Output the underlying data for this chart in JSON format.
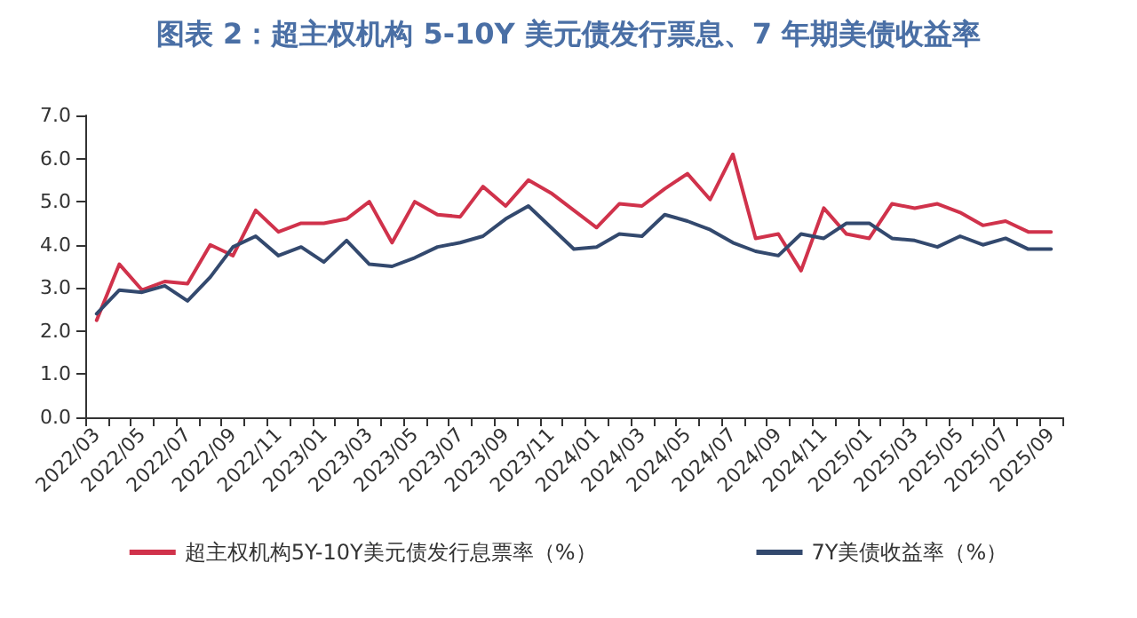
{
  "chart_data": {
    "type": "line",
    "title": "图表 2：超主权机构 5-10Y 美元债发行票息、7 年期美债收益率",
    "categories": [
      "2022/03",
      null,
      "2022/05",
      null,
      "2022/07",
      null,
      "2022/09",
      null,
      "2022/11",
      null,
      "2023/01",
      null,
      "2023/03",
      null,
      "2023/05",
      null,
      "2023/07",
      null,
      "2023/09",
      null,
      "2023/11",
      null,
      "2024/01",
      null,
      "2024/03",
      null,
      "2024/05",
      null,
      "2024/07",
      null,
      "2024/09",
      null,
      "2024/11",
      null,
      "2025/01",
      null,
      "2025/03",
      null,
      "2025/05",
      null,
      "2025/07",
      null,
      "2025/09"
    ],
    "series": [
      {
        "name": "超主权机构5Y-10Y美元债发行息票率（%）",
        "color": "#d0324b",
        "values": [
          2.25,
          3.55,
          2.95,
          3.15,
          3.1,
          4.0,
          3.75,
          4.8,
          4.3,
          4.5,
          4.5,
          4.6,
          5.0,
          4.05,
          5.0,
          4.7,
          4.65,
          5.35,
          4.9,
          5.5,
          5.2,
          4.8,
          4.4,
          4.95,
          4.9,
          5.3,
          5.65,
          5.05,
          6.1,
          4.15,
          4.25,
          3.4,
          4.85,
          4.25,
          4.15,
          4.95,
          4.85,
          4.95,
          4.75,
          4.45,
          4.55,
          4.3,
          4.3
        ]
      },
      {
        "name": "7Y美债收益率（%）",
        "color": "#33496e",
        "values": [
          2.4,
          2.95,
          2.9,
          3.05,
          2.7,
          3.25,
          3.95,
          4.2,
          3.75,
          3.95,
          3.6,
          4.1,
          3.55,
          3.5,
          3.7,
          3.95,
          4.05,
          4.2,
          4.6,
          4.9,
          4.4,
          3.9,
          3.95,
          4.25,
          4.2,
          4.7,
          4.55,
          4.35,
          4.05,
          3.85,
          3.75,
          4.25,
          4.15,
          4.5,
          4.5,
          4.15,
          4.1,
          3.95,
          4.2,
          4.0,
          4.15,
          3.9,
          3.9
        ]
      }
    ],
    "ylim": [
      0,
      7
    ],
    "yticks": [
      {
        "value": 0,
        "label": "0.0"
      },
      {
        "value": 1,
        "label": "1.0"
      },
      {
        "value": 2,
        "label": "2.0"
      },
      {
        "value": 3,
        "label": "3.0"
      },
      {
        "value": 4,
        "label": "4.0"
      },
      {
        "value": 5,
        "label": "5.0"
      },
      {
        "value": 6,
        "label": "6.0"
      },
      {
        "value": 7,
        "label": "7.0"
      }
    ],
    "legend": "bottom",
    "marker": "none",
    "line_style": "solid"
  }
}
